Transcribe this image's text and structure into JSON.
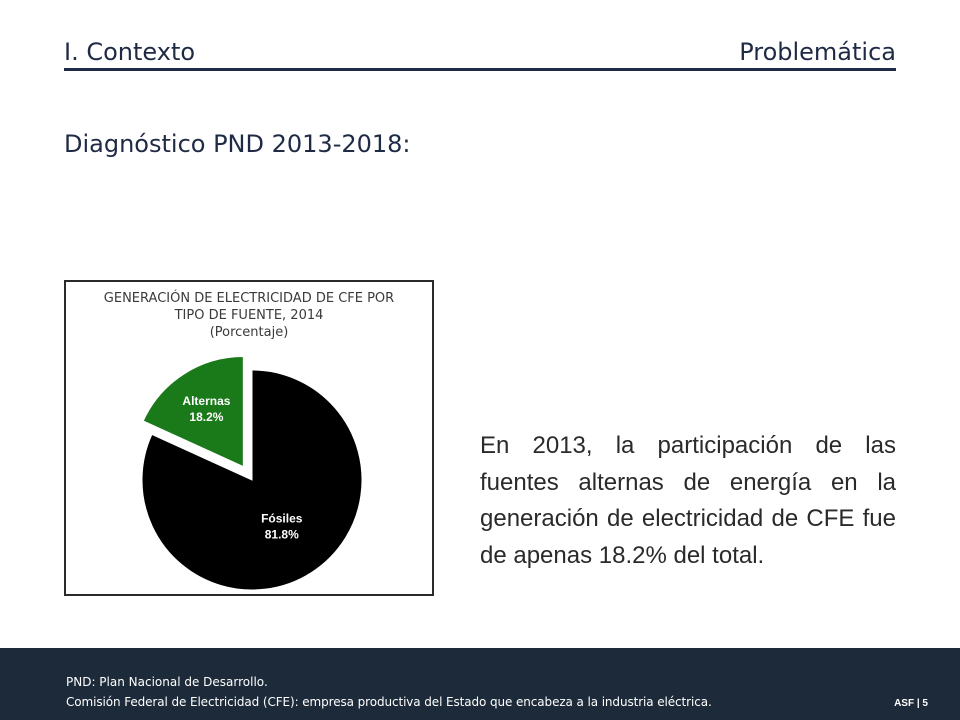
{
  "header": {
    "section": "I. Contexto",
    "topic": "Problemática"
  },
  "subtitle": "Diagnóstico PND 2013-2018:",
  "chart_data": {
    "type": "pie",
    "title_lines": [
      "GENERACIÓN DE ELECTRICIDAD DE CFE POR",
      "TIPO DE FUENTE, 2014",
      "(Porcentaje)"
    ],
    "slices": [
      {
        "label": "Fósiles",
        "value": 81.8,
        "value_label": "81.8%",
        "color": "#000000"
      },
      {
        "label": "Alternas",
        "value": 18.2,
        "value_label": "18.2%",
        "color": "#1a7a1a"
      }
    ],
    "exploded": "Alternas"
  },
  "body_text": "En 2013, la participación de las fuentes alternas de energía en la generación de electricidad de CFE fue de apenas 18.2% del total.",
  "footer": {
    "note1": "PND: Plan Nacional de Desarrollo.",
    "note2": "Comisión Federal de Electricidad (CFE): empresa productiva del Estado que encabeza a la industria eléctrica.",
    "page_label": "ASF | 5"
  },
  "colors": {
    "navy": "#1f2a44",
    "footer_bg": "#1c2a3a",
    "alternas_green": "#1a7a1a"
  }
}
